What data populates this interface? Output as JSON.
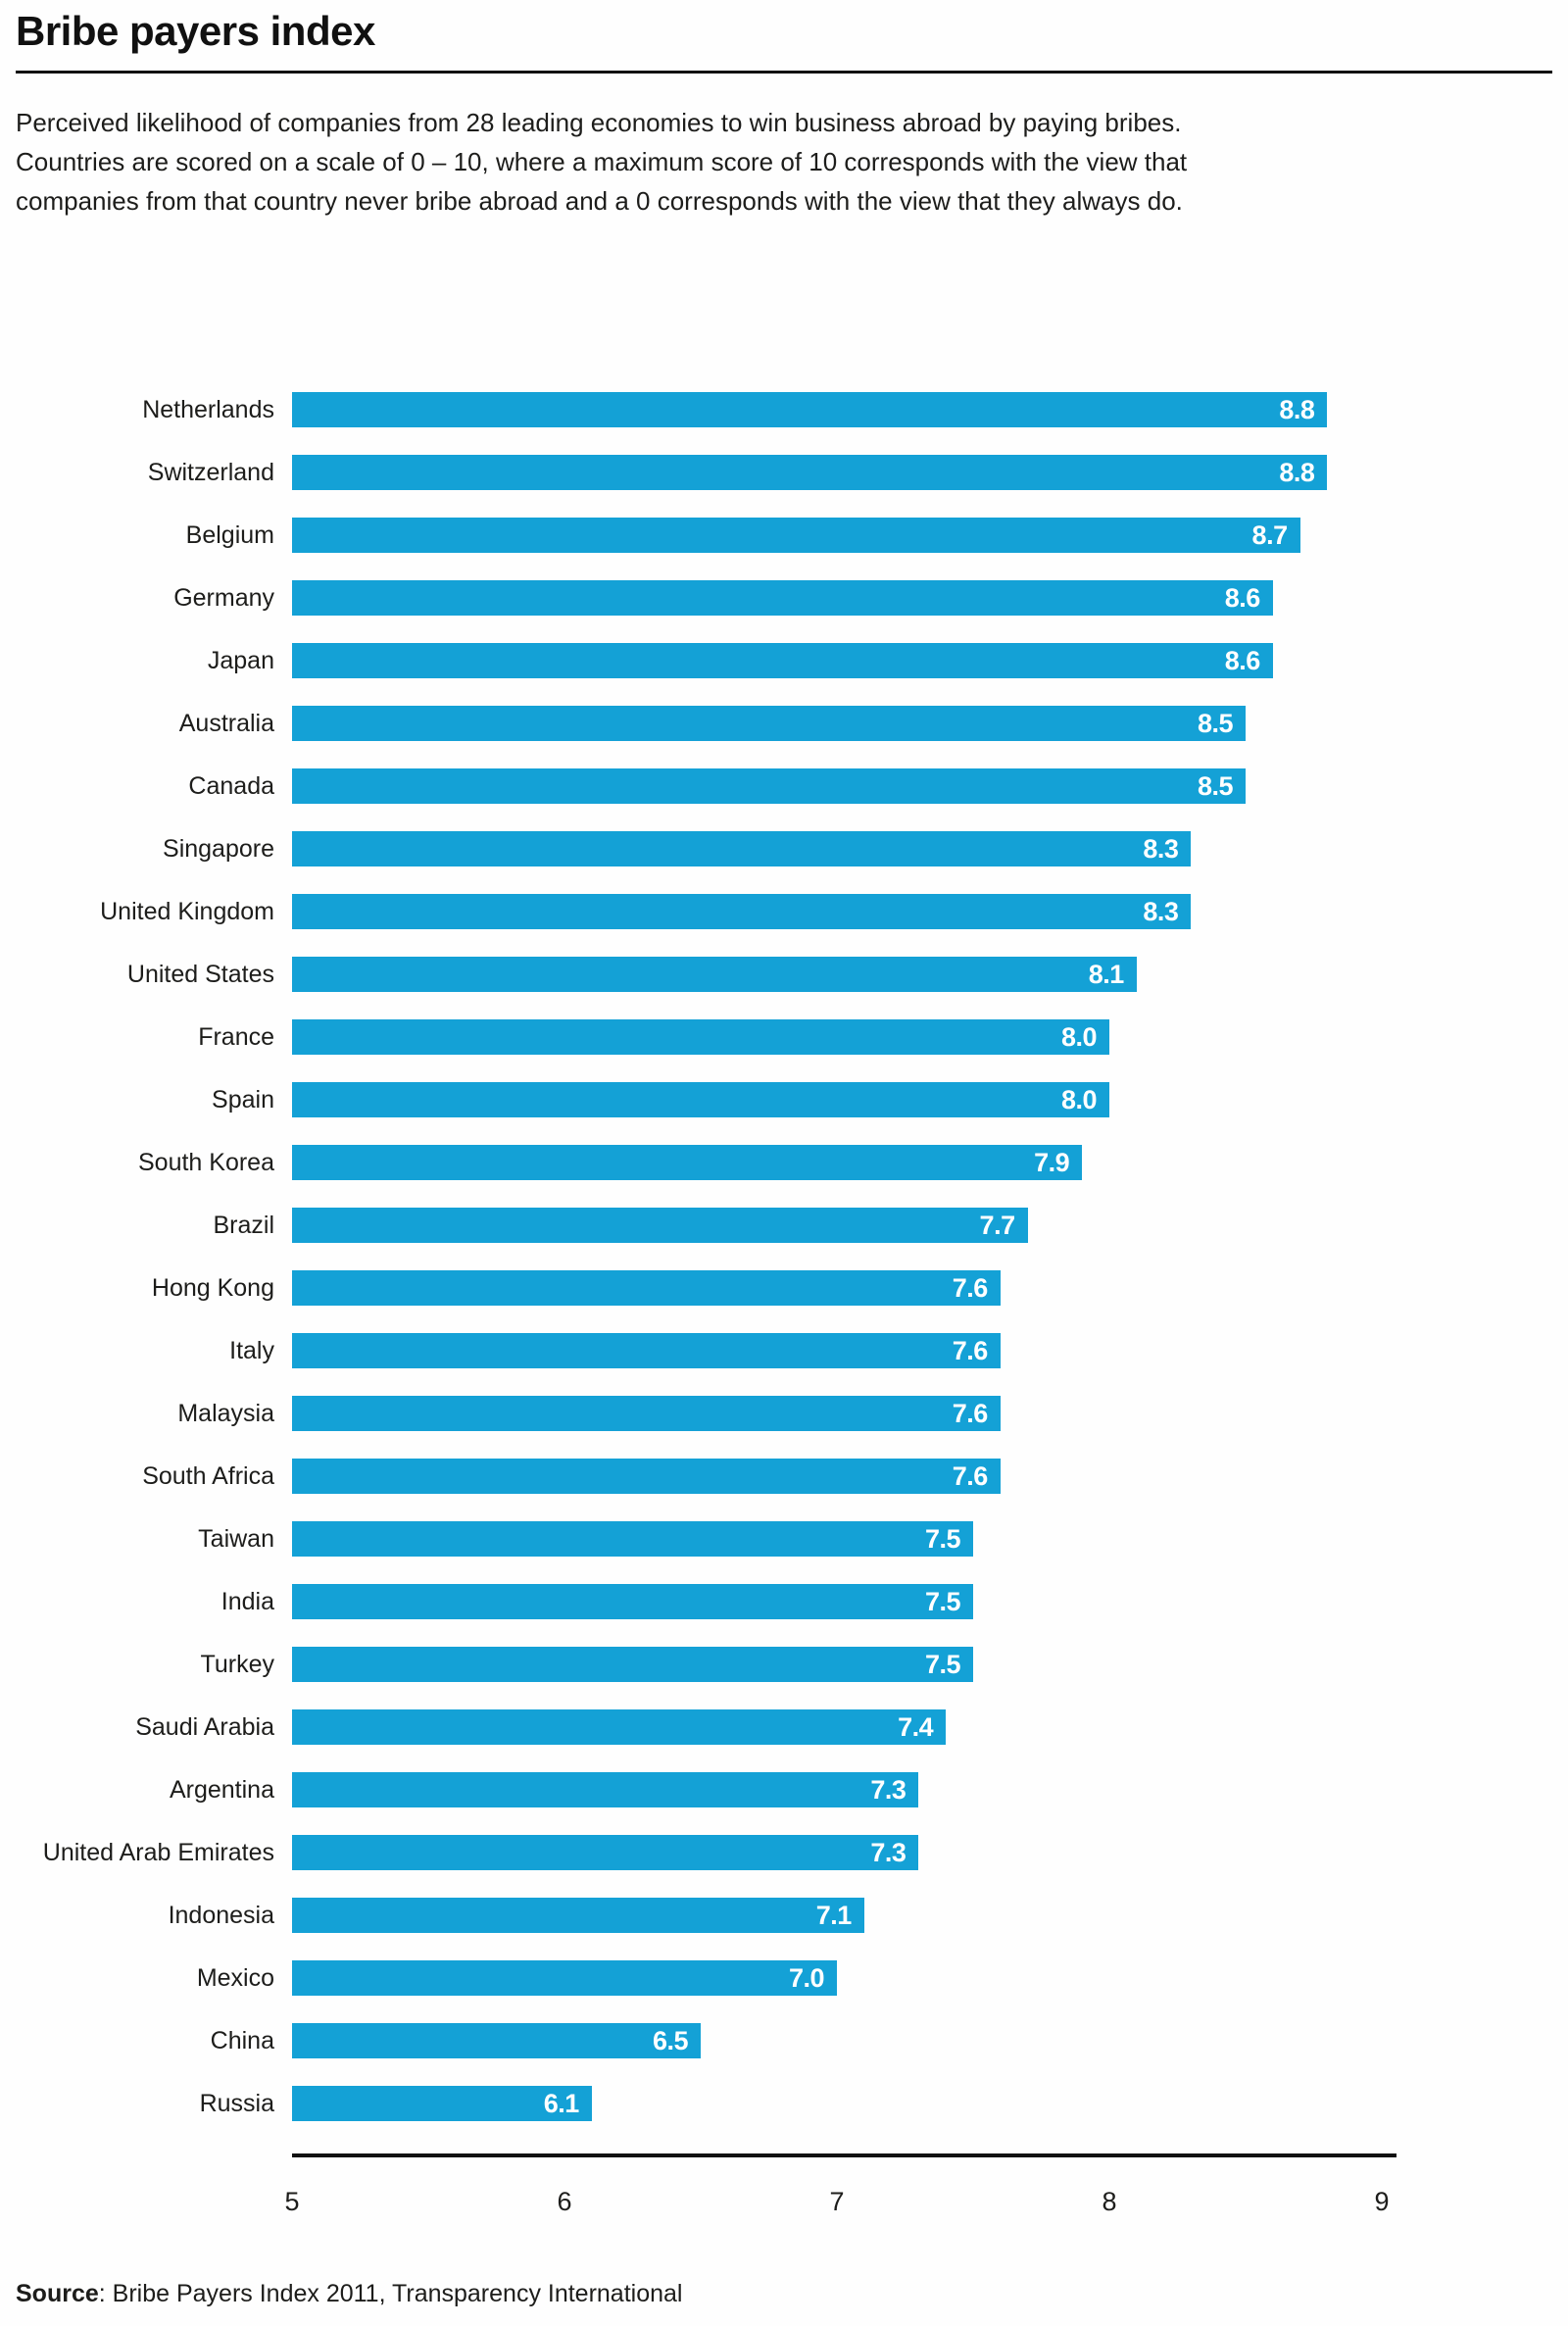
{
  "title": "Bribe payers index",
  "description_lines": [
    "Perceived likelihood of companies from 28 leading economies to win business abroad by paying bribes.",
    "Countries are scored on a scale of 0 – 10, where a maximum score of 10 corresponds with the view that",
    "companies from that country never bribe abroad and a 0 corresponds with the view that they always do."
  ],
  "source": {
    "label": "Source",
    "rest": ": Bribe Payers Index 2011, Transparency International"
  },
  "colors": {
    "bar": "#14A1D6",
    "value_label": "#FFFFFF",
    "text": "#1D1D1B",
    "axis": "#111111"
  },
  "chart_data": {
    "type": "bar",
    "orientation": "horizontal",
    "title": "Bribe payers index",
    "xlabel": "",
    "ylabel": "",
    "grid": false,
    "legend": false,
    "xlim": [
      5,
      9
    ],
    "x_ticks": [
      5,
      6,
      7,
      8,
      9
    ],
    "categories": [
      "Netherlands",
      "Switzerland",
      "Belgium",
      "Germany",
      "Japan",
      "Australia",
      "Canada",
      "Singapore",
      "United Kingdom",
      "United States",
      "France",
      "Spain",
      "South Korea",
      "Brazil",
      "Hong Kong",
      "Italy",
      "Malaysia",
      "South Africa",
      "Taiwan",
      "India",
      "Turkey",
      "Saudi Arabia",
      "Argentina",
      "United Arab Emirates",
      "Indonesia",
      "Mexico",
      "China",
      "Russia"
    ],
    "values": [
      8.8,
      8.8,
      8.7,
      8.6,
      8.6,
      8.5,
      8.5,
      8.3,
      8.3,
      8.1,
      8.0,
      8.0,
      7.9,
      7.7,
      7.6,
      7.6,
      7.6,
      7.6,
      7.5,
      7.5,
      7.5,
      7.4,
      7.3,
      7.3,
      7.1,
      7.0,
      6.5,
      6.1
    ]
  }
}
